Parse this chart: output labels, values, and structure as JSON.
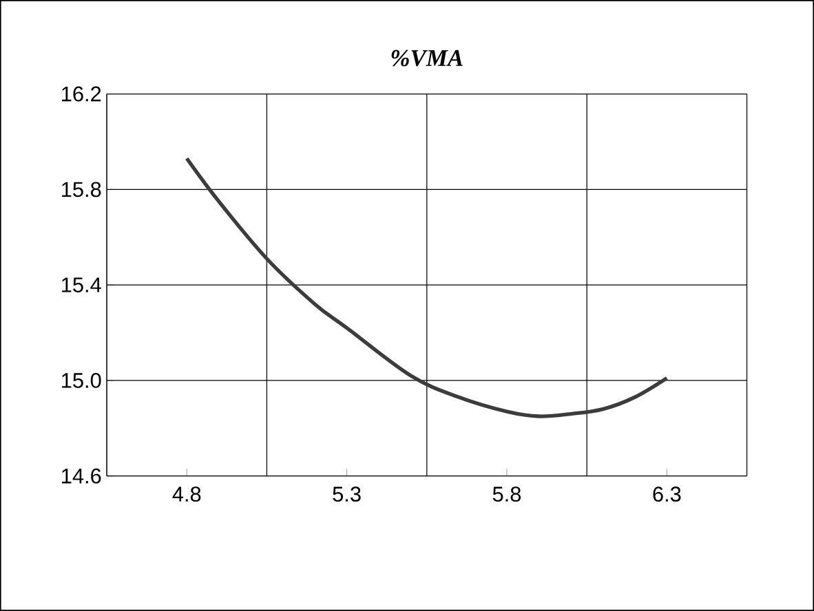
{
  "chart_data": {
    "type": "line",
    "title": "%VMA",
    "series": [
      {
        "color": "#3c3c3c",
        "x": [
          4.8,
          4.9,
          5.05,
          5.2,
          5.3,
          5.5,
          5.65,
          5.8,
          5.9,
          6.0,
          6.1,
          6.2,
          6.3
        ],
        "values": [
          15.93,
          15.75,
          15.51,
          15.32,
          15.22,
          15.02,
          14.93,
          14.87,
          14.85,
          14.86,
          14.88,
          14.93,
          15.01
        ]
      }
    ],
    "xlim": [
      4.55,
      6.55
    ],
    "ylim": [
      14.6,
      16.2
    ],
    "xticks": [
      4.8,
      5.3,
      5.8,
      6.3
    ],
    "yticks": [
      14.6,
      {
        "value": 15.0,
        "label": "15.0"
      },
      15.4,
      15.8,
      16.2
    ],
    "grid": true,
    "marker": "none",
    "line_style": "solid"
  }
}
